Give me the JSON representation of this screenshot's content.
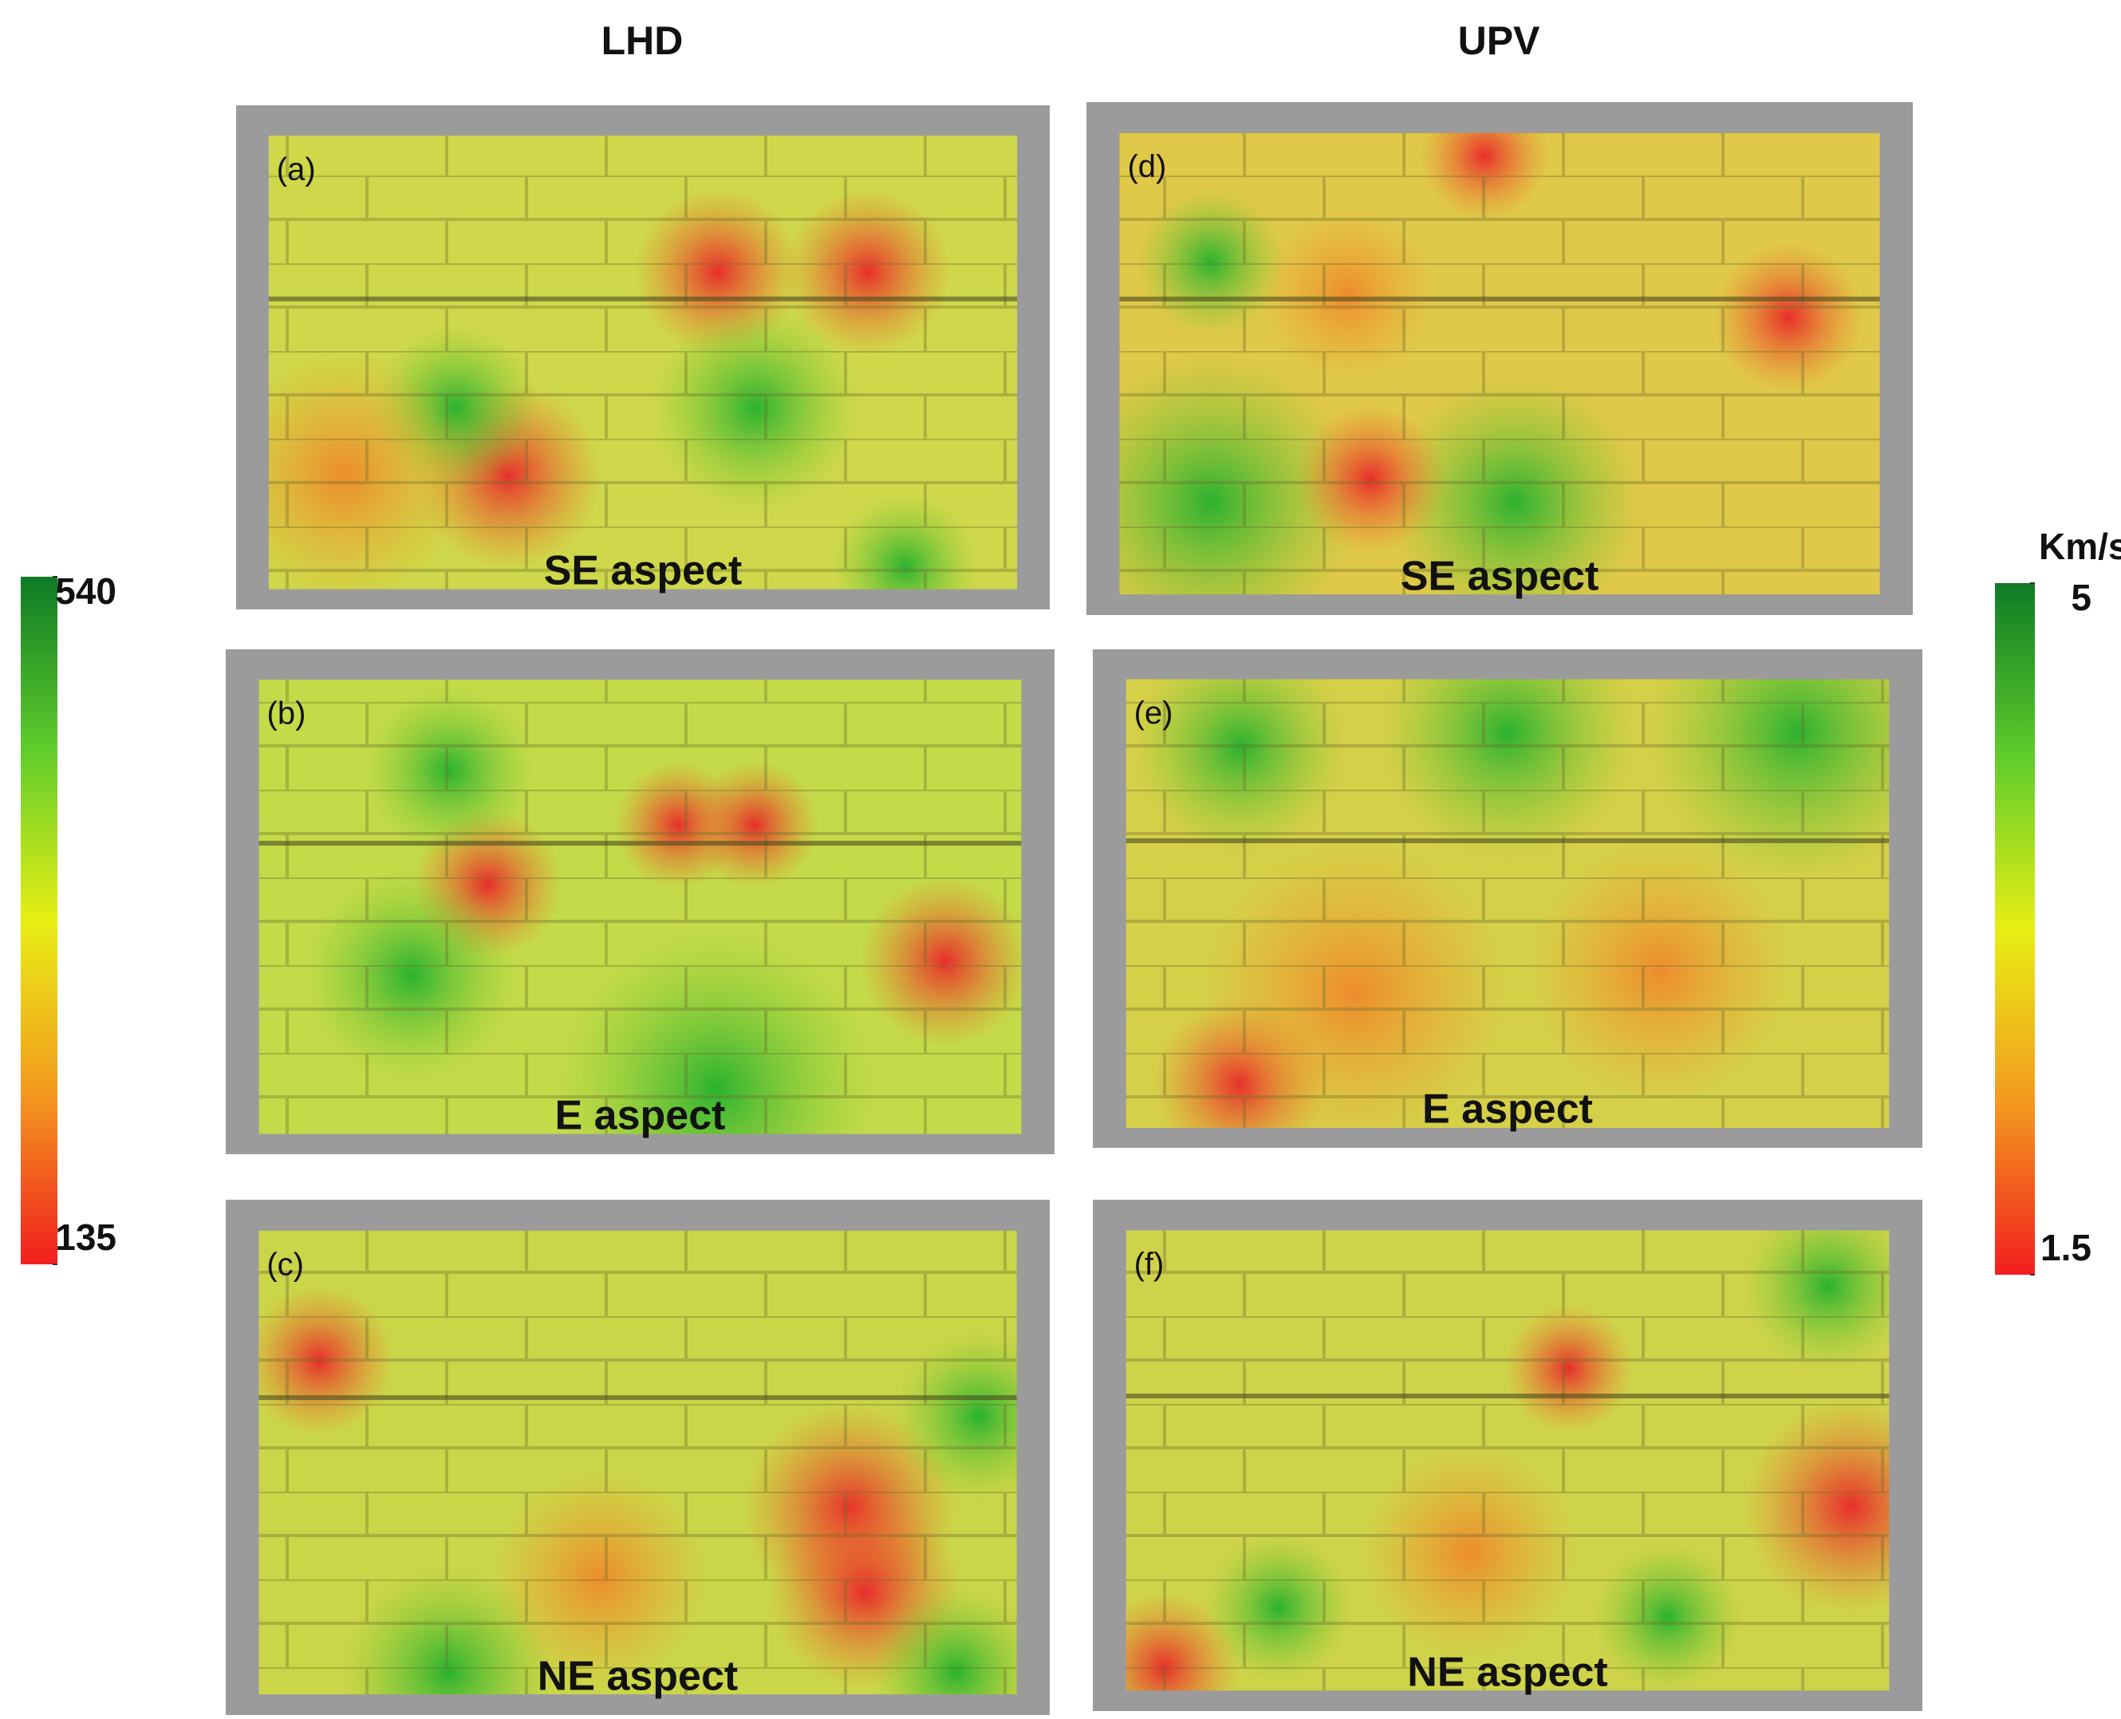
{
  "columns": [
    {
      "title": "LHD"
    },
    {
      "title": "UPV"
    }
  ],
  "panels": [
    {
      "label": "(a)",
      "aspect": "SE aspect"
    },
    {
      "label": "(b)",
      "aspect": "E aspect"
    },
    {
      "label": "(c)",
      "aspect": "NE aspect"
    },
    {
      "label": "(d)",
      "aspect": "SE aspect"
    },
    {
      "label": "(e)",
      "aspect": "E aspect"
    },
    {
      "label": "(f)",
      "aspect": "NE aspect"
    }
  ],
  "colorbars": [
    {
      "ticks": [
        540,
        135
      ]
    },
    {
      "unit": "Km/s",
      "ticks": [
        5,
        1.5
      ]
    }
  ]
}
